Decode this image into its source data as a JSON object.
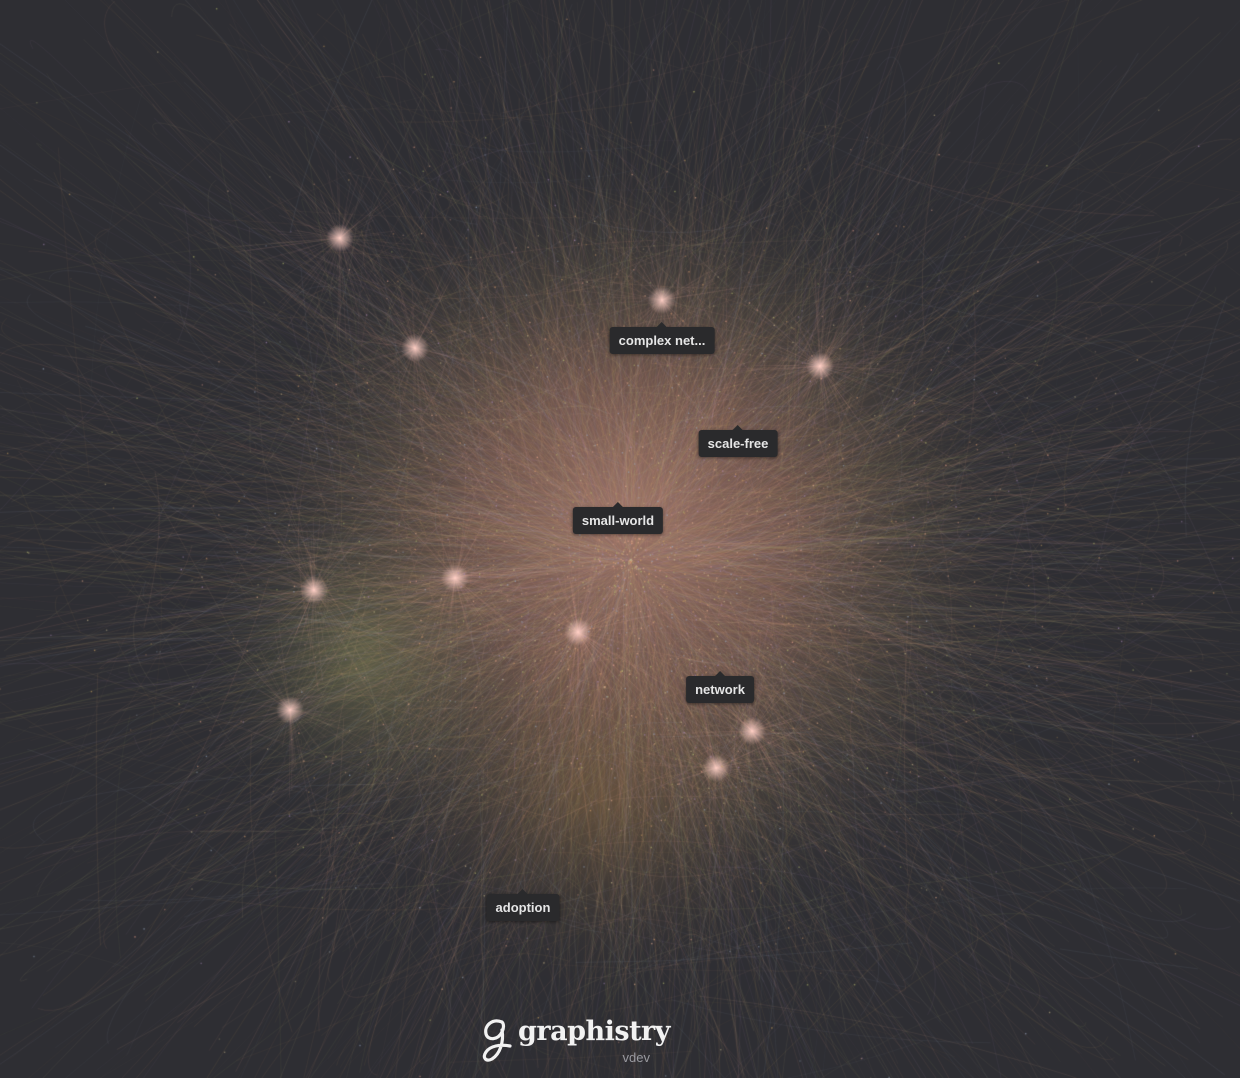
{
  "canvas": {
    "background": "#2e2e33",
    "node_colors": [
      "#f0a890",
      "#e8b090",
      "#d8a070",
      "#c8a060",
      "#b8c070",
      "#a0b0c8",
      "#b090c0",
      "#d0c090"
    ]
  },
  "labels": [
    {
      "id": "label-complex-networks",
      "text": "complex net..."
    },
    {
      "id": "label-scale-free",
      "text": "scale-free"
    },
    {
      "id": "label-small-world",
      "text": "small-world"
    },
    {
      "id": "label-network",
      "text": "network"
    },
    {
      "id": "label-adoption",
      "text": "adoption"
    }
  ],
  "logo": {
    "brand": "graphistry",
    "version": "vdev",
    "icon": "graphistry-logo-icon"
  }
}
